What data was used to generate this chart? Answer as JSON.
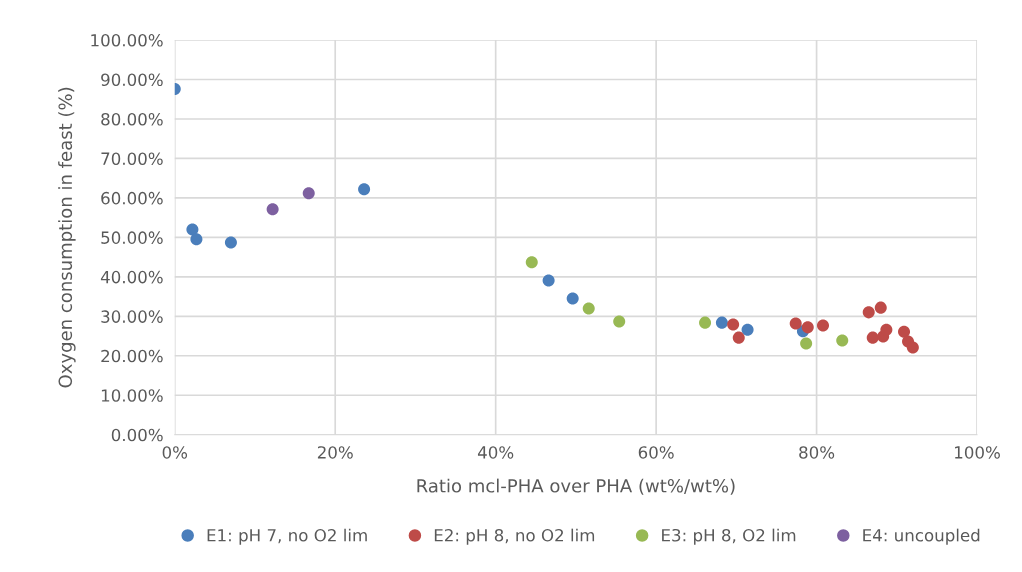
{
  "chart_data": {
    "type": "scatter",
    "xlabel": "Ratio mcl-PHA over PHA (wt%/wt%)",
    "ylabel": "Oxygen consumption in feast (%)",
    "xlim": [
      0,
      100
    ],
    "ylim": [
      0,
      100
    ],
    "xticks": [
      {
        "value": 0,
        "label": "0%"
      },
      {
        "value": 20,
        "label": "20%"
      },
      {
        "value": 40,
        "label": "40%"
      },
      {
        "value": 60,
        "label": "60%"
      },
      {
        "value": 80,
        "label": "80%"
      },
      {
        "value": 100,
        "label": "100%"
      }
    ],
    "yticks": [
      {
        "value": 0,
        "label": "0.00%"
      },
      {
        "value": 10,
        "label": "10.00%"
      },
      {
        "value": 20,
        "label": "20.00%"
      },
      {
        "value": 30,
        "label": "30.00%"
      },
      {
        "value": 40,
        "label": "40.00%"
      },
      {
        "value": 50,
        "label": "50.00%"
      },
      {
        "value": 60,
        "label": "60.00%"
      },
      {
        "value": 70,
        "label": "70.00%"
      },
      {
        "value": 80,
        "label": "80.00%"
      },
      {
        "value": 90,
        "label": "90.00%"
      },
      {
        "value": 100,
        "label": "100.00%"
      }
    ],
    "grid": true,
    "legend": "bottom",
    "marker": "circle",
    "series": [
      {
        "name": "E1: pH 7, no O2 lim",
        "color": "#4a7ebb",
        "x": [
          0,
          2.2,
          2.7,
          7.0,
          23.6,
          46.6,
          49.6,
          68.2,
          71.4,
          78.3
        ],
        "values": [
          87.6,
          52.0,
          49.5,
          48.7,
          62.2,
          39.1,
          34.5,
          28.4,
          26.6,
          26.2
        ]
      },
      {
        "name": "E2: pH 8, no O2 lim",
        "color": "#be4b48",
        "x": [
          69.6,
          70.3,
          77.4,
          78.9,
          80.8,
          86.5,
          88.0,
          87.0,
          88.3,
          88.7,
          90.9,
          91.4,
          92.0
        ],
        "values": [
          27.9,
          24.6,
          28.2,
          27.2,
          27.7,
          31.0,
          32.2,
          24.6,
          24.9,
          26.6,
          26.1,
          23.6,
          22.1
        ]
      },
      {
        "name": "E3: pH 8, O2 lim",
        "color": "#98b954",
        "x": [
          44.5,
          51.6,
          55.4,
          66.1,
          78.7,
          83.2
        ],
        "values": [
          43.7,
          32.0,
          28.7,
          28.4,
          23.1,
          23.9
        ]
      },
      {
        "name": "E4: uncoupled",
        "color": "#7d60a0",
        "x": [
          12.2,
          16.7
        ],
        "values": [
          57.1,
          61.2
        ]
      }
    ]
  }
}
